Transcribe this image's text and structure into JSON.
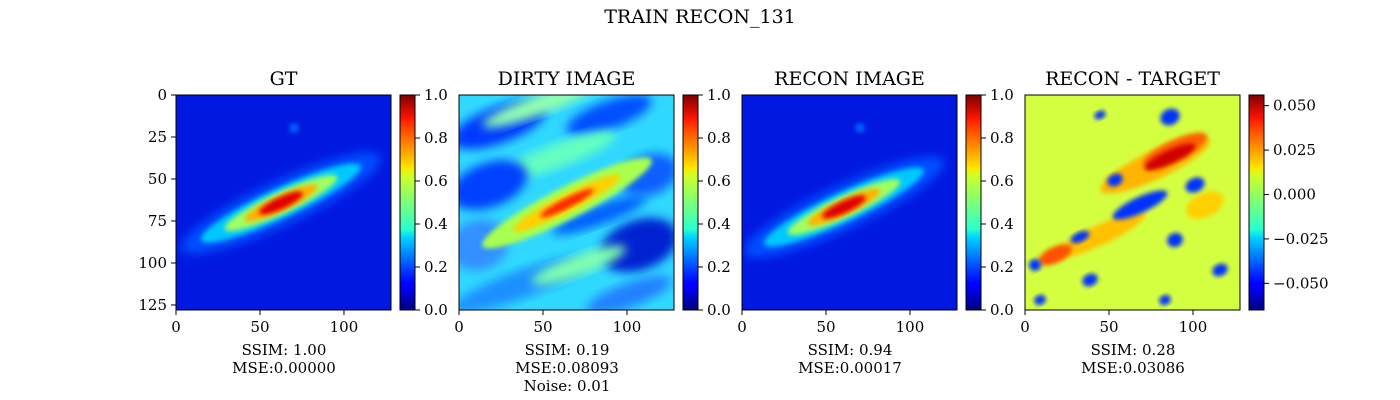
{
  "suptitle": "TRAIN RECON_131",
  "chart_data": [
    {
      "type": "heatmap",
      "title": "GT",
      "xticks": [
        0,
        50,
        100
      ],
      "yticks": [
        0,
        25,
        50,
        75,
        100,
        125
      ],
      "xlim": [
        0,
        128
      ],
      "ylim": [
        128,
        0
      ],
      "colorbar": {
        "min": 0.0,
        "max": 1.0,
        "ticks": [
          "0.0",
          "0.2",
          "0.4",
          "0.6",
          "0.8",
          "1.0"
        ]
      },
      "metrics": [
        "SSIM: 1.00",
        "MSE:0.00000"
      ]
    },
    {
      "type": "heatmap",
      "title": "DIRTY IMAGE",
      "xticks": [
        0,
        50,
        100
      ],
      "xlim": [
        0,
        128
      ],
      "ylim": [
        128,
        0
      ],
      "colorbar": {
        "min": 0.0,
        "max": 1.0,
        "ticks": [
          "0.0",
          "0.2",
          "0.4",
          "0.6",
          "0.8",
          "1.0"
        ]
      },
      "metrics": [
        "SSIM: 0.19",
        "MSE:0.08093",
        "Noise: 0.01"
      ]
    },
    {
      "type": "heatmap",
      "title": "RECON IMAGE",
      "xticks": [
        0,
        50,
        100
      ],
      "xlim": [
        0,
        128
      ],
      "ylim": [
        128,
        0
      ],
      "colorbar": {
        "min": 0.0,
        "max": 1.0,
        "ticks": [
          "0.0",
          "0.2",
          "0.4",
          "0.6",
          "0.8",
          "1.0"
        ]
      },
      "metrics": [
        "SSIM: 0.94",
        "MSE:0.00017"
      ]
    },
    {
      "type": "heatmap",
      "title": "RECON - TARGET",
      "xticks": [
        0,
        50,
        100
      ],
      "xlim": [
        0,
        128
      ],
      "ylim": [
        128,
        0
      ],
      "colorbar": {
        "min": -0.065,
        "max": 0.056,
        "ticks": [
          "0.050",
          "0.025",
          "0.000",
          "−0.025",
          "−0.050"
        ],
        "tick_values": [
          0.05,
          0.025,
          0.0,
          -0.025,
          -0.05
        ]
      },
      "metrics": [
        "SSIM: 0.28",
        "MSE:0.03086"
      ]
    }
  ]
}
